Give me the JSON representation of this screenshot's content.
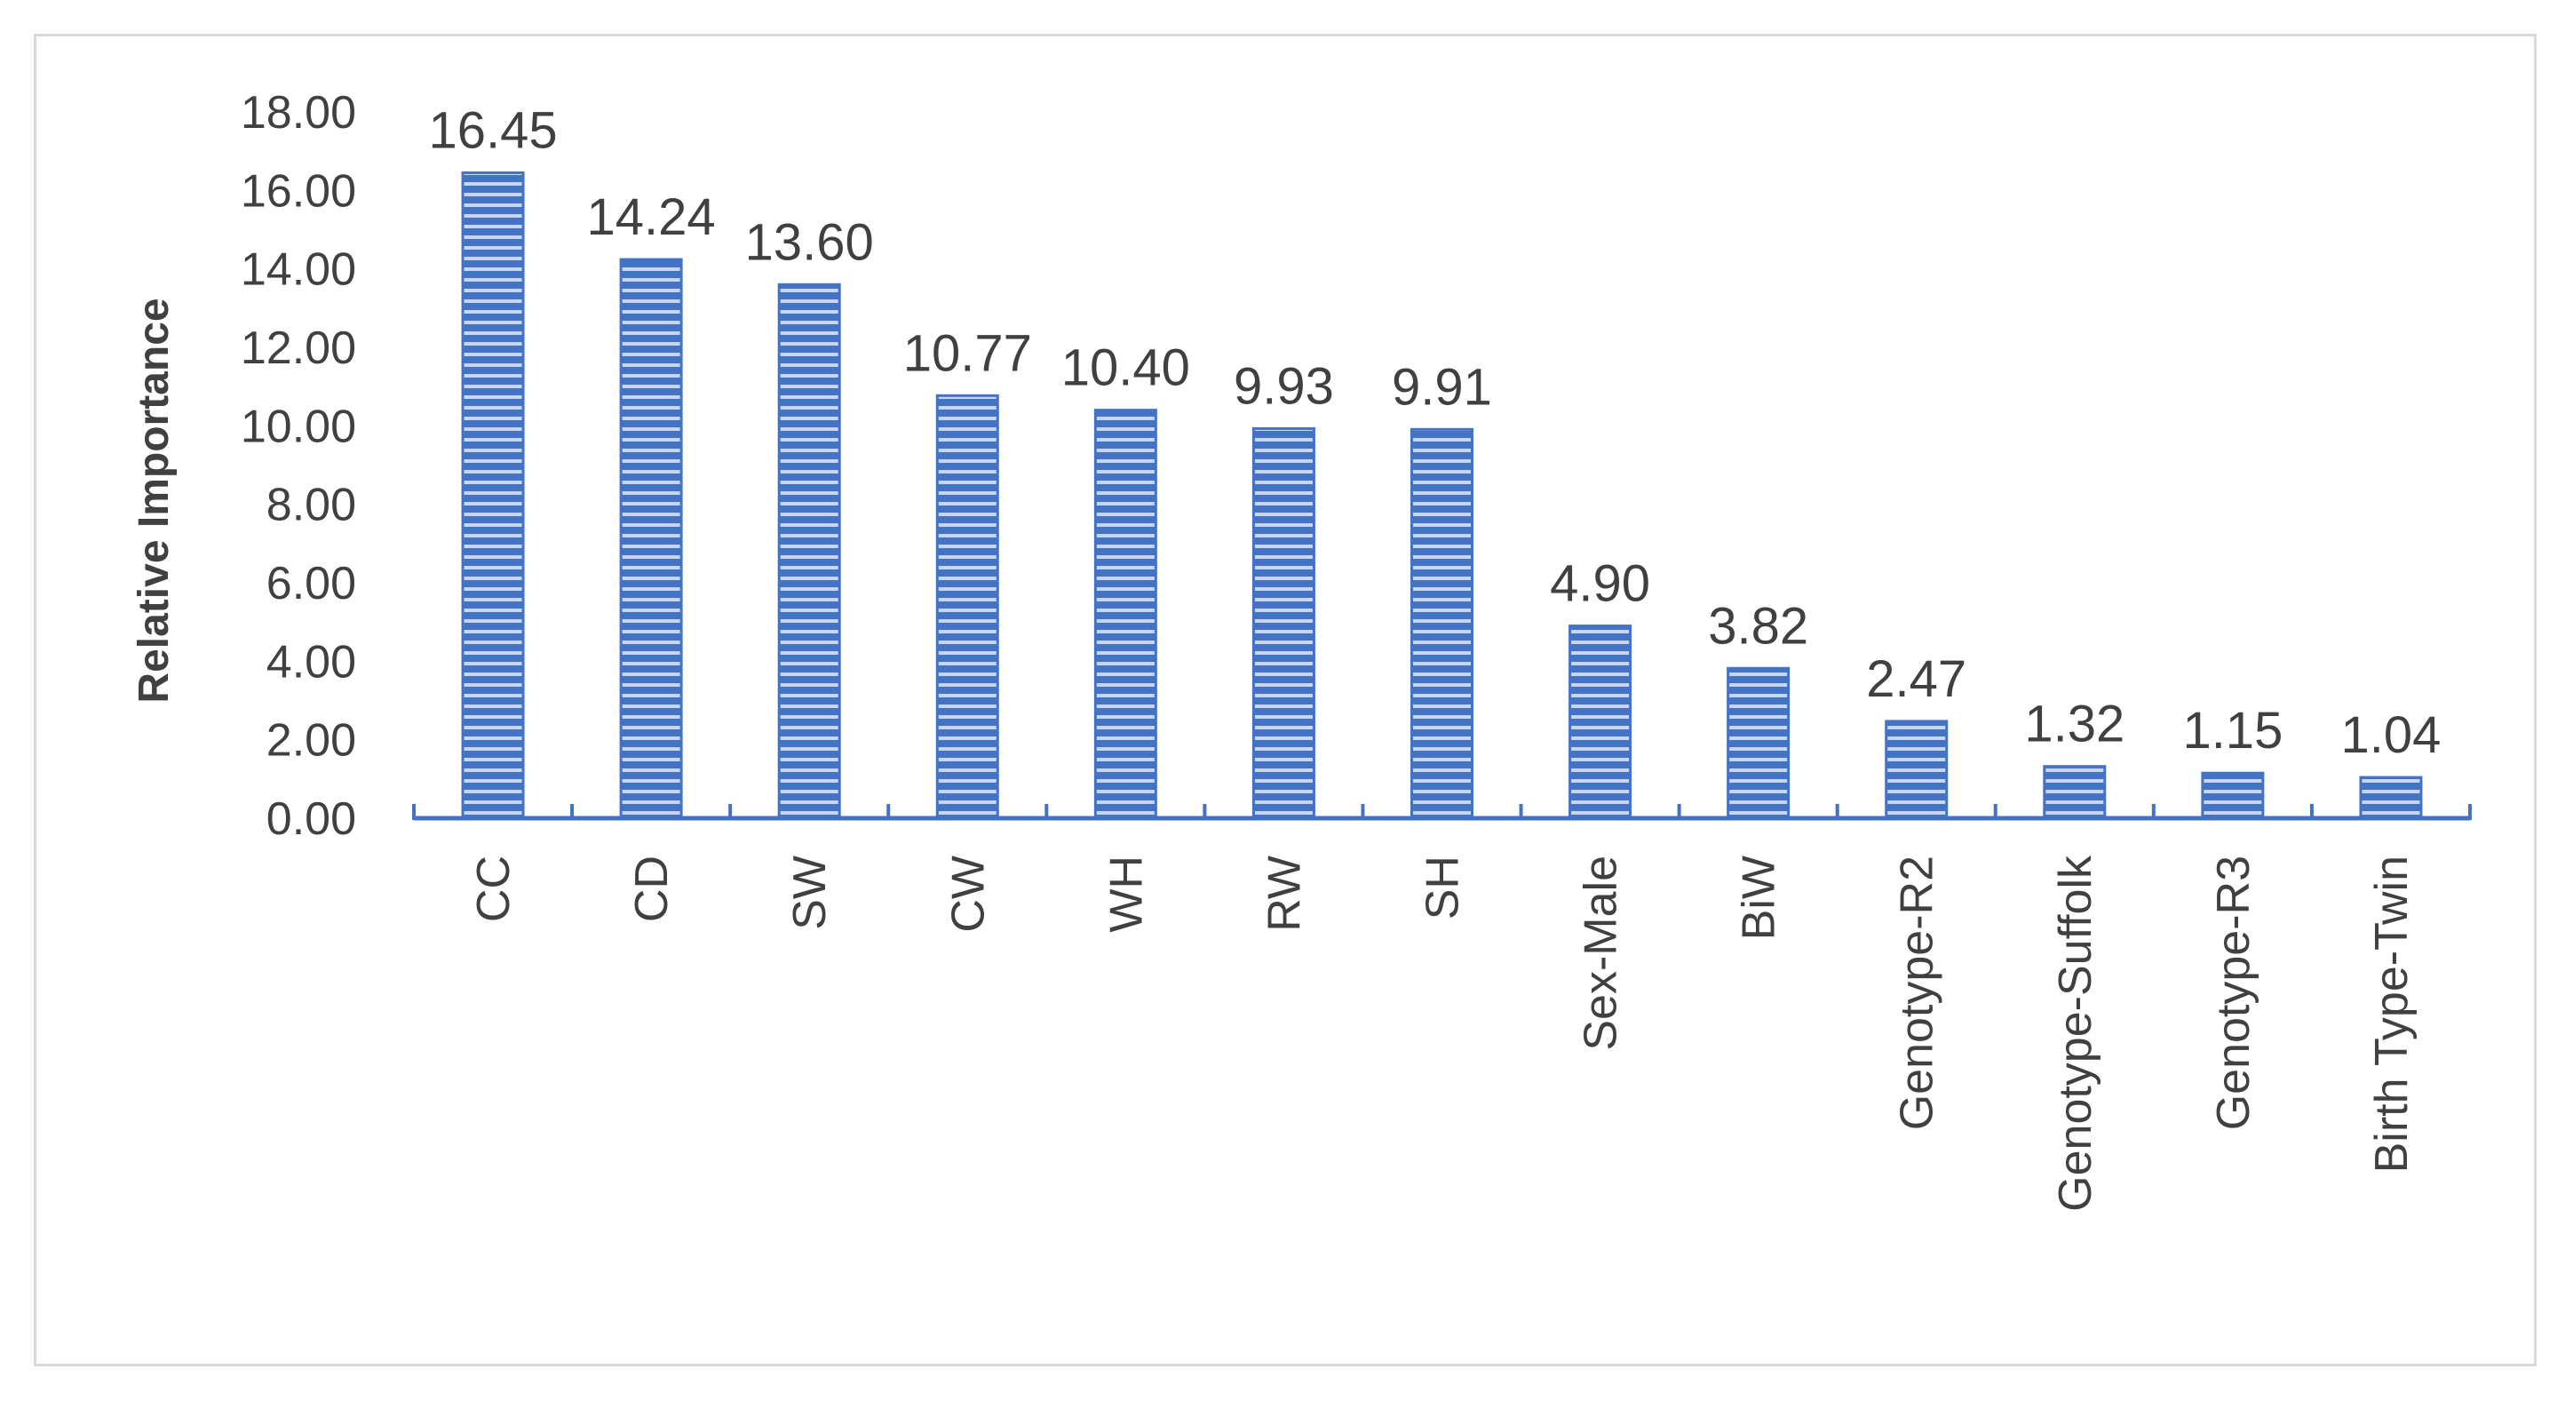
{
  "chart_data": {
    "type": "bar",
    "title": "",
    "xlabel": "",
    "ylabel": "Relative Importance",
    "ylim": [
      0,
      18
    ],
    "y_ticks": [
      "0.00",
      "2.00",
      "4.00",
      "6.00",
      "8.00",
      "10.00",
      "12.00",
      "14.00",
      "16.00",
      "18.00"
    ],
    "categories": [
      "CC",
      "CD",
      "SW",
      "CW",
      "WH",
      "RW",
      "SH",
      "Sex-Male",
      "BiW",
      "Genotype-R2",
      "Genotype-Suffolk",
      "Genotype-R3",
      "Birth Type-Twin"
    ],
    "values": [
      16.45,
      14.24,
      13.6,
      10.77,
      10.4,
      9.93,
      9.91,
      4.9,
      3.82,
      2.47,
      1.32,
      1.15,
      1.04
    ],
    "data_labels": [
      "16.45",
      "14.24",
      "13.60",
      "10.77",
      "10.40",
      "9.93",
      "9.91",
      "4.90",
      "3.82",
      "2.47",
      "1.32",
      "1.15",
      "1.04"
    ],
    "grid": false,
    "legend": "none",
    "bar_pattern": "horizontal-stripes",
    "colors": {
      "bar_fill": "#4472c4",
      "bar_stripe": "#ffffff",
      "axis": "#4472c4",
      "text": "#404040",
      "frame_border": "#d9d9d9"
    }
  }
}
